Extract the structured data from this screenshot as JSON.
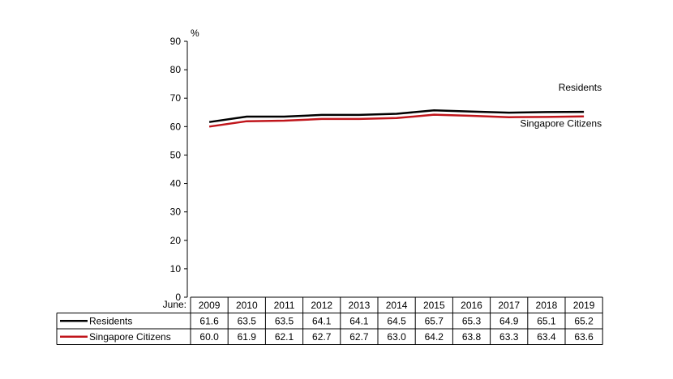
{
  "chart_data": {
    "type": "line",
    "y_unit": "%",
    "x_prefix_label": "June:",
    "categories": [
      "2009",
      "2010",
      "2011",
      "2012",
      "2013",
      "2014",
      "2015",
      "2016",
      "2017",
      "2018",
      "2019"
    ],
    "ylim": [
      0,
      90
    ],
    "yticks": [
      0,
      10,
      20,
      30,
      40,
      50,
      60,
      70,
      80,
      90
    ],
    "grid": false,
    "legend": "data table below chart",
    "series": [
      {
        "name": "Residents",
        "color": "#000000",
        "values": [
          61.6,
          63.5,
          63.5,
          64.1,
          64.1,
          64.5,
          65.7,
          65.3,
          64.9,
          65.1,
          65.2
        ],
        "labels": [
          "61.6",
          "63.5",
          "63.5",
          "64.1",
          "64.1",
          "64.5",
          "65.7",
          "65.3",
          "64.9",
          "65.1",
          "65.2"
        ]
      },
      {
        "name": "Singapore Citizens",
        "color": "#c0151b",
        "values": [
          60.0,
          61.9,
          62.1,
          62.7,
          62.7,
          63.0,
          64.2,
          63.8,
          63.3,
          63.4,
          63.6
        ],
        "labels": [
          "60.0",
          "61.9",
          "62.1",
          "62.7",
          "62.7",
          "63.0",
          "64.2",
          "63.8",
          "63.3",
          "63.4",
          "63.6"
        ]
      }
    ]
  }
}
